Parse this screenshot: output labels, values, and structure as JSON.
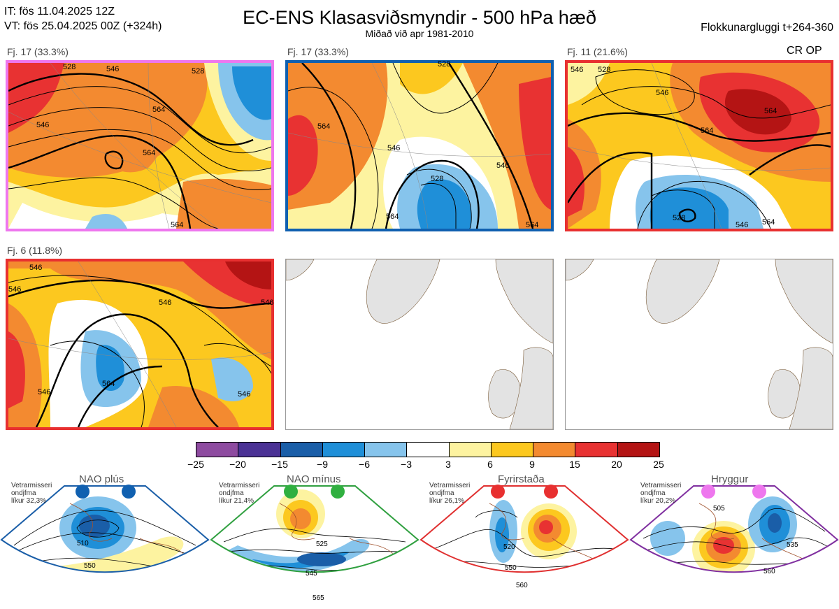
{
  "header": {
    "it_line": "IT: fös 11.04.2025 12Z",
    "vt_line": "VT: fös 25.04.2025 00Z  (+324h)",
    "title": "EC-ENS Klasasviðsmyndir - 500 hPa hæð",
    "subtitle": "Miðað við apr 1981-2010",
    "window": "Flokkunargluggi t+264-360"
  },
  "panels": [
    {
      "label": "Fj. 17 (33.3%)",
      "frame_color": "#ee77ee",
      "contours": [
        "528",
        "546",
        "564",
        "546",
        "528",
        "564",
        "564"
      ]
    },
    {
      "label": "Fj. 17 (33.3%)",
      "frame_color": "#1060b0",
      "contours": [
        "528",
        "564",
        "546",
        "528",
        "546",
        "564",
        "564"
      ]
    },
    {
      "label": "Fj. 11 (21.6%)",
      "frame_color": "#e83030",
      "tag": "CR OP",
      "contours": [
        "546",
        "528",
        "546",
        "564",
        "564",
        "528",
        "546",
        "564"
      ]
    },
    {
      "label": "Fj. 6 (11.8%)",
      "frame_color": "#e83030",
      "contours": [
        "546",
        "546",
        "546",
        "546",
        "564",
        "546",
        "546"
      ]
    }
  ],
  "colorbar": {
    "ticks": [
      "−25",
      "−20",
      "−15",
      "−9",
      "−6",
      "−3",
      "3",
      "6",
      "9",
      "15",
      "20",
      "25"
    ],
    "colors": [
      "#8e4ba0",
      "#4b3295",
      "#1a5ea8",
      "#1f8fd8",
      "#86c4ec",
      "#ffffff",
      "#fdf3a0",
      "#fcc81f",
      "#f38a30",
      "#e83232",
      "#b41414"
    ]
  },
  "regimes": [
    {
      "name": "NAO plús",
      "note": [
        "Vetrarmisseri",
        "ondjfma",
        "líkur 32,3%"
      ],
      "dot_color": "#1060b0",
      "frame_color": "#1a5ea8",
      "labels": [
        "510",
        "550"
      ]
    },
    {
      "name": "NAO mínus",
      "note": [
        "Vetrarmisseri",
        "ondjfma",
        "líkur 21,4%"
      ],
      "dot_color": "#30b040",
      "frame_color": "#30a040",
      "labels": [
        "525",
        "545",
        "565"
      ]
    },
    {
      "name": "Fyrirstaða",
      "note": [
        "Vetrarmisseri",
        "ondjfma",
        "líkur 26,1%"
      ],
      "dot_color": "#e83030",
      "frame_color": "#e03030",
      "labels": [
        "520",
        "550",
        "560"
      ]
    },
    {
      "name": "Hryggur",
      "note": [
        "Vetrarmisseri",
        "ondjfma",
        "líkur 20,2%"
      ],
      "dot_color": "#ee77ee",
      "frame_color": "#8030a0",
      "labels": [
        "505",
        "535",
        "560"
      ]
    }
  ]
}
